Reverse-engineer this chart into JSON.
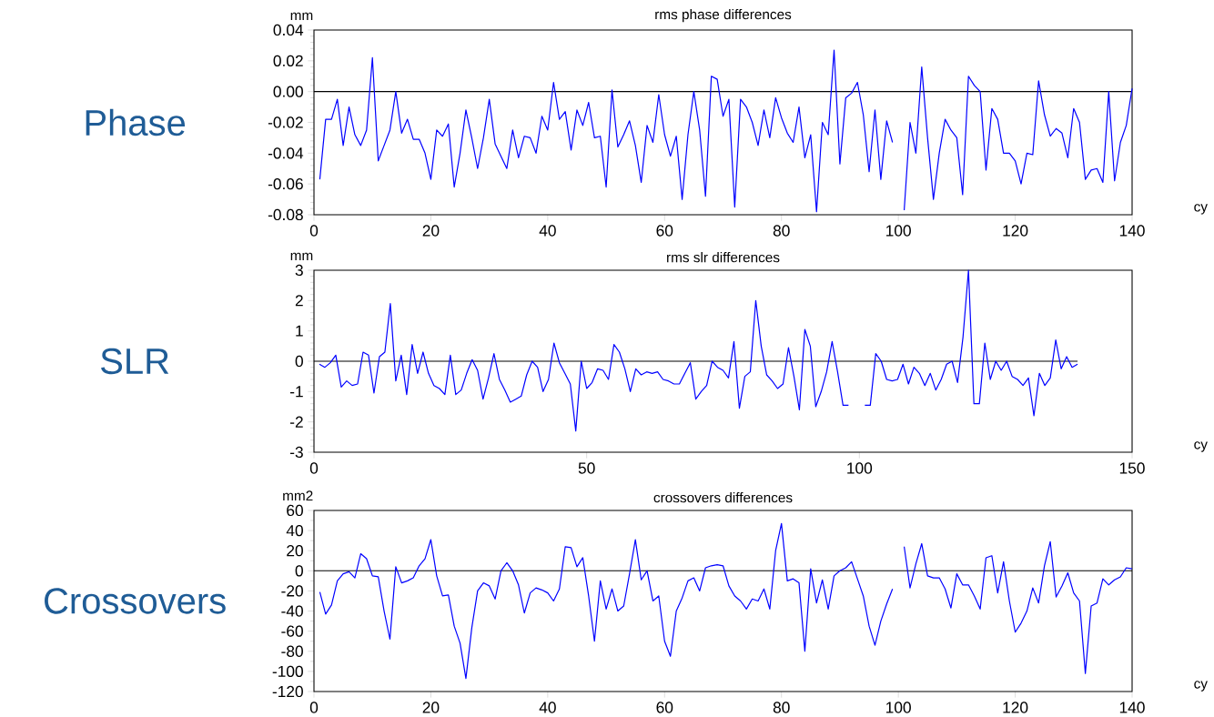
{
  "chart_data": [
    {
      "type": "line",
      "title": "rms phase differences",
      "xlabel": "cy",
      "ylabel": "mm",
      "annotations": [
        "Phase"
      ],
      "color": "#0000ff",
      "xlim": [
        0,
        140
      ],
      "xticks": [
        0,
        20,
        40,
        60,
        80,
        100,
        120,
        140
      ],
      "ylim": [
        -0.08,
        0.04
      ],
      "yticks": [
        {
          "value": -0.08,
          "label": "-0.08"
        },
        {
          "value": -0.06,
          "label": "-0.06"
        },
        {
          "value": -0.04,
          "label": "-0.04"
        },
        {
          "value": -0.02,
          "label": "-0.02"
        },
        {
          "value": 0,
          "label": "0.00"
        },
        {
          "value": 0.02,
          "label": "0.02"
        },
        {
          "value": 0.04,
          "label": "0.04"
        }
      ],
      "ref_lines": [
        {
          "axis": "y",
          "value": 0,
          "color": "#000000"
        }
      ],
      "x": [
        1,
        2,
        3,
        4,
        5,
        6,
        7,
        8,
        9,
        10,
        11,
        12,
        13,
        14,
        15,
        16,
        17,
        18,
        19,
        20,
        21,
        22,
        23,
        24,
        25,
        26,
        27,
        28,
        29,
        30,
        31,
        32,
        33,
        34,
        35,
        36,
        37,
        38,
        39,
        40,
        41,
        42,
        43,
        44,
        45,
        46,
        47,
        48,
        49,
        50,
        51,
        52,
        53,
        54,
        55,
        56,
        57,
        58,
        59,
        60,
        61,
        62,
        63,
        64,
        65,
        66,
        67,
        68,
        69,
        70,
        71,
        72,
        73,
        74,
        75,
        76,
        77,
        78,
        79,
        80,
        81,
        82,
        83,
        84,
        85,
        86,
        87,
        88,
        89,
        90,
        91,
        92,
        93,
        94,
        95,
        96,
        97,
        98,
        99,
        100,
        101,
        102,
        103,
        104,
        105,
        106,
        107,
        108,
        109,
        110,
        111,
        112,
        113,
        114,
        115,
        116,
        117,
        118,
        119,
        120,
        121,
        122,
        123,
        124,
        125,
        126,
        127,
        128,
        129,
        130,
        131,
        132,
        133,
        134,
        135,
        136,
        137,
        138,
        139,
        140
      ],
      "values": [
        -0.057,
        -0.018,
        -0.018,
        -0.005,
        -0.035,
        -0.01,
        -0.028,
        -0.035,
        -0.025,
        0.022,
        -0.045,
        -0.035,
        -0.025,
        0.0,
        -0.027,
        -0.018,
        -0.031,
        -0.031,
        -0.04,
        -0.057,
        -0.025,
        -0.029,
        -0.021,
        -0.062,
        -0.04,
        -0.012,
        -0.03,
        -0.05,
        -0.03,
        -0.005,
        -0.034,
        -0.042,
        -0.05,
        -0.025,
        -0.043,
        -0.029,
        -0.03,
        -0.04,
        -0.016,
        -0.025,
        0.006,
        -0.018,
        -0.013,
        -0.038,
        -0.012,
        -0.022,
        -0.007,
        -0.03,
        -0.029,
        -0.062,
        0.001,
        -0.036,
        -0.028,
        -0.019,
        -0.035,
        -0.059,
        -0.022,
        -0.033,
        -0.002,
        -0.028,
        -0.042,
        -0.029,
        -0.07,
        -0.028,
        0.0,
        -0.025,
        -0.068,
        0.01,
        0.008,
        -0.016,
        -0.005,
        -0.075,
        -0.005,
        -0.01,
        -0.02,
        -0.035,
        -0.012,
        -0.03,
        -0.004,
        -0.017,
        -0.027,
        -0.033,
        -0.01,
        -0.043,
        -0.028,
        -0.078,
        -0.02,
        -0.028,
        0.027,
        -0.047,
        -0.004,
        -0.001,
        0.006,
        -0.015,
        -0.052,
        -0.012,
        -0.057,
        -0.019,
        -0.033,
        null,
        -0.077,
        -0.02,
        -0.04,
        0.016,
        -0.03,
        -0.07,
        -0.04,
        -0.018,
        -0.025,
        -0.03,
        -0.067,
        0.01,
        0.004,
        0.0,
        -0.051,
        -0.011,
        -0.018,
        -0.04,
        -0.04,
        -0.045,
        -0.06,
        -0.04,
        -0.041,
        0.007,
        -0.015,
        -0.029,
        -0.024,
        -0.027,
        -0.043,
        -0.011,
        -0.02,
        -0.057,
        -0.051,
        -0.05,
        -0.059,
        0.0,
        -0.058,
        -0.033,
        -0.022,
        0.002
      ]
    },
    {
      "type": "line",
      "title": "rms slr differences",
      "xlabel": "cy",
      "ylabel": "mm",
      "annotations": [
        "SLR"
      ],
      "color": "#0000ff",
      "xlim": [
        0,
        150
      ],
      "xticks": [
        0,
        50,
        100,
        150
      ],
      "ylim": [
        -3,
        3
      ],
      "yticks": [
        -3,
        -2,
        -1,
        0,
        1,
        2,
        3
      ],
      "ref_lines": [
        {
          "axis": "y",
          "value": 0,
          "color": "#000000"
        }
      ],
      "x": [
        1,
        2,
        3,
        4,
        5,
        6,
        7,
        8,
        9,
        10,
        11,
        12,
        13,
        14,
        15,
        16,
        17,
        18,
        19,
        20,
        21,
        22,
        23,
        24,
        25,
        26,
        27,
        28,
        29,
        30,
        31,
        32,
        33,
        34,
        35,
        36,
        37,
        38,
        39,
        40,
        41,
        42,
        43,
        44,
        45,
        46,
        47,
        48,
        49,
        50,
        51,
        52,
        53,
        54,
        55,
        56,
        57,
        58,
        59,
        60,
        61,
        62,
        63,
        64,
        65,
        66,
        67,
        68,
        69,
        70,
        71,
        72,
        73,
        74,
        75,
        76,
        77,
        78,
        79,
        80,
        81,
        82,
        83,
        84,
        85,
        86,
        87,
        88,
        89,
        90,
        91,
        92,
        93,
        94,
        95,
        96,
        97,
        98,
        99,
        100,
        101,
        102,
        103,
        104,
        105,
        106,
        107,
        108,
        109,
        110,
        111,
        112,
        113,
        114,
        115,
        116,
        117,
        118,
        119,
        120,
        121,
        122,
        123,
        124,
        125,
        126,
        127,
        128,
        129,
        130,
        131,
        132,
        133,
        134,
        135,
        136,
        137,
        138,
        139,
        140
      ],
      "values": [
        -0.1,
        -0.2,
        -0.05,
        0.2,
        -0.85,
        -0.65,
        -0.8,
        -0.75,
        0.3,
        0.2,
        -1.05,
        0.15,
        0.3,
        1.9,
        -0.65,
        0.2,
        -1.1,
        0.55,
        -0.4,
        0.3,
        -0.4,
        -0.8,
        -0.9,
        -1.1,
        0.2,
        -1.1,
        -0.95,
        -0.4,
        0.05,
        -0.3,
        -1.25,
        -0.55,
        0.25,
        -0.6,
        -0.95,
        -1.35,
        -1.25,
        -1.15,
        -0.45,
        0.0,
        -0.2,
        -1.0,
        -0.6,
        0.6,
        -0.05,
        -0.4,
        -0.75,
        -2.3,
        0.0,
        -0.9,
        -0.7,
        -0.25,
        -0.3,
        -0.6,
        0.55,
        0.3,
        -0.25,
        -1.0,
        -0.25,
        -0.45,
        -0.35,
        -0.4,
        -0.35,
        -0.6,
        -0.65,
        -0.75,
        -0.75,
        -0.4,
        -0.05,
        -1.25,
        -1.0,
        -0.8,
        0.0,
        -0.2,
        -0.3,
        -0.55,
        0.65,
        -1.55,
        -0.5,
        -0.35,
        2.0,
        0.5,
        -0.45,
        -0.65,
        -0.9,
        -0.75,
        0.45,
        -0.5,
        -1.6,
        1.05,
        0.5,
        -1.5,
        -1.0,
        -0.35,
        0.65,
        -0.35,
        -1.45,
        -1.45,
        null,
        null,
        -1.45,
        -1.45,
        0.25,
        0.0,
        -0.6,
        -0.65,
        -0.6,
        -0.1,
        -0.75,
        -0.2,
        -0.4,
        -0.8,
        -0.4,
        -0.95,
        -0.6,
        -0.1,
        0.0,
        -0.7,
        0.8,
        3.0,
        -1.4,
        -1.4,
        0.6,
        -0.6,
        0.0,
        -0.3,
        0.0,
        -0.5,
        -0.6,
        -0.8,
        -0.55,
        -1.8,
        -0.4,
        -0.8,
        -0.55,
        0.7,
        -0.25,
        0.15,
        -0.2,
        -0.1
      ]
    },
    {
      "type": "line",
      "title": "crossovers differences",
      "xlabel": "cy",
      "ylabel": "mm2",
      "annotations": [
        "Crossovers"
      ],
      "color": "#0000ff",
      "xlim": [
        0,
        140
      ],
      "xticks": [
        0,
        20,
        40,
        60,
        80,
        100,
        120,
        140
      ],
      "ylim": [
        -120,
        60
      ],
      "yticks": [
        -120,
        -100,
        -80,
        -60,
        -40,
        -20,
        0,
        20,
        40,
        60
      ],
      "ref_lines": [
        {
          "axis": "y",
          "value": 0,
          "color": "#000000"
        }
      ],
      "x": [
        1,
        2,
        3,
        4,
        5,
        6,
        7,
        8,
        9,
        10,
        11,
        12,
        13,
        14,
        15,
        16,
        17,
        18,
        19,
        20,
        21,
        22,
        23,
        24,
        25,
        26,
        27,
        28,
        29,
        30,
        31,
        32,
        33,
        34,
        35,
        36,
        37,
        38,
        39,
        40,
        41,
        42,
        43,
        44,
        45,
        46,
        47,
        48,
        49,
        50,
        51,
        52,
        53,
        54,
        55,
        56,
        57,
        58,
        59,
        60,
        61,
        62,
        63,
        64,
        65,
        66,
        67,
        68,
        69,
        70,
        71,
        72,
        73,
        74,
        75,
        76,
        77,
        78,
        79,
        80,
        81,
        82,
        83,
        84,
        85,
        86,
        87,
        88,
        89,
        90,
        91,
        92,
        93,
        94,
        95,
        96,
        97,
        98,
        99,
        100,
        101,
        102,
        103,
        104,
        105,
        106,
        107,
        108,
        109,
        110,
        111,
        112,
        113,
        114,
        115,
        116,
        117,
        118,
        119,
        120,
        121,
        122,
        123,
        124,
        125,
        126,
        127,
        128,
        129,
        130,
        131,
        132,
        133,
        134,
        135,
        136,
        137,
        138,
        139,
        140
      ],
      "values": [
        -21,
        -43,
        -34,
        -10,
        -3,
        -1,
        -7,
        17,
        12,
        -5,
        -6,
        -40,
        -68,
        4,
        -12,
        -10,
        -7,
        5,
        12,
        31,
        -5,
        -25,
        -24,
        -55,
        -72,
        -107,
        -57,
        -20,
        -12,
        -15,
        -28,
        0,
        8,
        0,
        -14,
        -42,
        -22,
        -17,
        -19,
        -22,
        -30,
        -18,
        24,
        23,
        4,
        13,
        -25,
        -70,
        -10,
        -38,
        -18,
        -40,
        -35,
        -3,
        31,
        -9,
        0,
        -30,
        -25,
        -70,
        -85,
        -40,
        -27,
        -10,
        -7,
        -20,
        3,
        5,
        6,
        5,
        -15,
        -25,
        -30,
        -38,
        -28,
        -30,
        -18,
        -38,
        20,
        47,
        -10,
        -8,
        -12,
        -80,
        2,
        -32,
        -9,
        -38,
        -5,
        0,
        3,
        9,
        -8,
        -25,
        -55,
        -74,
        -50,
        -33,
        -18,
        null,
        24,
        -17,
        7,
        27,
        -5,
        -7,
        -7,
        -18,
        -37,
        -3,
        -14,
        -14,
        -25,
        -38,
        13,
        15,
        -22,
        9,
        -30,
        -61,
        -52,
        -40,
        -17,
        -32,
        5,
        29,
        -26,
        -15,
        -2,
        -22,
        -30,
        -102,
        -35,
        -32,
        -8,
        -14,
        -9,
        -6,
        3,
        2
      ]
    }
  ]
}
